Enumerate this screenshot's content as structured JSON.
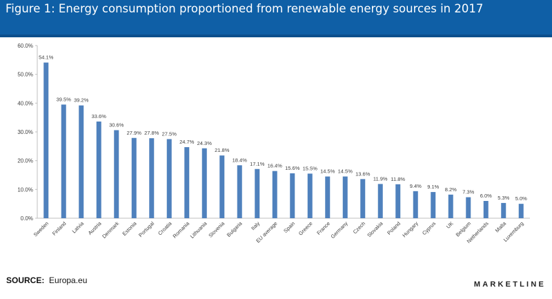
{
  "header": {
    "title": "Figure 1: Energy consumption proportioned from renewable energy sources in 2017",
    "background_color": "#0f5fa6"
  },
  "footer": {
    "source_label": "SOURCE:",
    "source_value": "Europa.eu",
    "brand": "MARKETLINE"
  },
  "chart_data": {
    "type": "bar",
    "bar_color": "#4f81bd",
    "ylim": [
      0,
      60
    ],
    "yticks": [
      0,
      10,
      20,
      30,
      40,
      50,
      60
    ],
    "ytick_labels": [
      "0.0%",
      "10.0%",
      "20.0%",
      "30.0%",
      "40.0%",
      "50.0%",
      "60.0%"
    ],
    "grid": false,
    "categories": [
      "Sweden",
      "Finland",
      "Latvia",
      "Austria",
      "Denmark",
      "Estonia",
      "Portugal",
      "Croatia",
      "Romania",
      "Lithuania",
      "Slovenia",
      "Bulgaria",
      "Italy",
      "EU average",
      "Spain",
      "Greece",
      "France",
      "Germany",
      "Czech",
      "Slovakia",
      "Poland",
      "Hungary",
      "Cyprus",
      "UK",
      "Belgium",
      "Netherlands",
      "Malta",
      "Luxemburg"
    ],
    "values": [
      54.1,
      39.5,
      39.2,
      33.6,
      30.6,
      27.9,
      27.8,
      27.5,
      24.7,
      24.3,
      21.8,
      18.4,
      17.1,
      16.4,
      15.6,
      15.5,
      14.5,
      14.5,
      13.6,
      11.9,
      11.8,
      9.4,
      9.1,
      8.2,
      7.3,
      6.0,
      5.3,
      5.0
    ],
    "data_labels": [
      "54.1%",
      "39.5%",
      "39.2%",
      "33.6%",
      "30.6%",
      "27.9%",
      "27.8%",
      "27.5%",
      "24.7%",
      "24.3%",
      "21.8%",
      "18.4%",
      "17.1%",
      "16.4%",
      "15.6%",
      "15.5%",
      "14.5%",
      "14.5%",
      "13.6%",
      "11.9%",
      "11.8%",
      "9.4%",
      "9.1%",
      "8.2%",
      "7.3%",
      "6.0%",
      "5.3%",
      "5.0%"
    ]
  }
}
